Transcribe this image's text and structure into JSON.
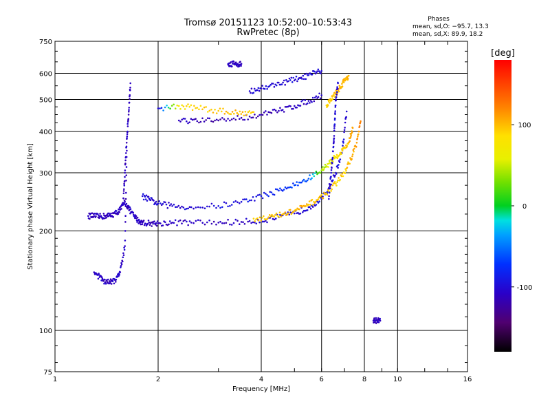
{
  "header": {
    "title": "Tromsø 20151123 10:52:00–10:53:43",
    "subtitle": "RwPretec (8p)"
  },
  "phase_stats": {
    "heading": "Phases",
    "line_o": "mean, sd,O: −95.7, 13.3",
    "line_x": "mean, sd,X:  89.9, 18.2"
  },
  "colorbar": {
    "label": "[deg]",
    "ticks": [
      100,
      0,
      -100
    ],
    "range": [
      -180,
      180
    ]
  },
  "chart_data": {
    "type": "scatter",
    "xlabel": "Frequency [MHz]",
    "ylabel": "Stationary phase Virtual Height [km]",
    "x_scale": "log",
    "y_scale": "log",
    "xlim": [
      1,
      16
    ],
    "ylim": [
      75,
      750
    ],
    "x_ticks": [
      1,
      2,
      4,
      6,
      8,
      10,
      16
    ],
    "y_ticks": [
      75,
      100,
      200,
      300,
      400,
      500,
      600,
      750
    ],
    "grid": true,
    "series": [
      {
        "x": [
          1.25,
          1.3,
          1.35,
          1.4,
          1.45,
          1.5,
          1.55,
          1.6,
          1.65,
          1.7,
          1.75,
          1.8,
          1.9,
          2.0,
          2.2,
          2.5,
          3.0,
          3.5,
          4.0,
          4.5,
          5.0,
          5.5,
          6.0,
          6.3,
          6.6,
          6.9,
          7.1
        ],
        "y": [
          222,
          222,
          221,
          222,
          223,
          226,
          232,
          245,
          232,
          222,
          215,
          212,
          211,
          211,
          212,
          212,
          212,
          213,
          215,
          220,
          226,
          236,
          250,
          270,
          300,
          350,
          460
        ],
        "phase": [
          -110,
          -110,
          -110,
          -110,
          -110,
          -110,
          -110,
          -110,
          -110,
          -105,
          -110,
          -110,
          -110,
          -110,
          -110,
          -108,
          -112,
          -110,
          -105,
          -100,
          -100,
          -100,
          -98,
          -100,
          -100,
          -100,
          -100
        ]
      },
      {
        "x": [
          1.8,
          1.9,
          2.0,
          2.2,
          2.5,
          3.0,
          3.5,
          4.0,
          4.5,
          5.0,
          5.5,
          6.0,
          6.3,
          6.6,
          6.9,
          7.2,
          7.4
        ],
        "y": [
          255,
          248,
          242,
          238,
          236,
          238,
          245,
          255,
          265,
          275,
          288,
          305,
          320,
          335,
          350,
          370,
          410
        ],
        "phase": [
          -100,
          -105,
          -100,
          -105,
          -100,
          -95,
          -95,
          -90,
          -80,
          -70,
          -60,
          40,
          60,
          80,
          90,
          100,
          110
        ]
      },
      {
        "x": [
          3.8,
          4.2,
          4.6,
          5.0,
          5.4,
          5.8,
          6.2,
          6.6,
          7.0,
          7.3,
          7.6,
          7.8
        ],
        "y": [
          218,
          220,
          224,
          230,
          238,
          248,
          260,
          278,
          300,
          330,
          370,
          430
        ],
        "phase": [
          90,
          95,
          100,
          105,
          100,
          95,
          90,
          90,
          95,
          100,
          110,
          120
        ]
      },
      {
        "x": [
          2.3,
          2.6,
          3.0,
          3.5,
          4.0,
          4.5,
          5.0,
          5.5,
          6.0
        ],
        "y": [
          432,
          430,
          432,
          440,
          450,
          462,
          478,
          495,
          515
        ],
        "phase": [
          -110,
          -115,
          -120,
          -118,
          -115,
          -112,
          -110,
          -108,
          -105
        ]
      },
      {
        "x": [
          3.7,
          4.0,
          4.4,
          4.8,
          5.2,
          5.6,
          6.0
        ],
        "y": [
          530,
          540,
          555,
          568,
          580,
          595,
          610
        ],
        "phase": [
          -100,
          -100,
          -100,
          -100,
          -100,
          -100,
          -100
        ]
      },
      {
        "x": [
          2.0,
          2.3,
          2.6,
          3.0,
          3.4,
          3.8
        ],
        "y": [
          470,
          478,
          472,
          462,
          455,
          458
        ],
        "phase": [
          -100,
          80,
          90,
          95,
          100,
          90
        ]
      },
      {
        "x": [
          6.2,
          6.4,
          6.6,
          6.8,
          7.0,
          7.2
        ],
        "y": [
          480,
          500,
          520,
          545,
          570,
          590
        ],
        "phase": [
          90,
          95,
          100,
          100,
          105,
          100
        ]
      },
      {
        "x": [
          1.3,
          1.35,
          1.4,
          1.45,
          1.5,
          1.55,
          1.6,
          1.62
        ],
        "y": [
          150,
          145,
          140,
          140,
          142,
          150,
          180,
          350
        ],
        "phase": [
          -110,
          -105,
          -110,
          -112,
          -108,
          -110,
          -110,
          -110
        ]
      },
      {
        "x": [
          1.58,
          1.6,
          1.62,
          1.64,
          1.66
        ],
        "y": [
          240,
          300,
          380,
          450,
          560
        ],
        "phase": [
          -110,
          -110,
          -110,
          -115,
          -110
        ]
      },
      {
        "x": [
          6.3,
          6.4,
          6.5,
          6.55,
          6.6,
          6.7
        ],
        "y": [
          250,
          300,
          360,
          420,
          500,
          560
        ],
        "phase": [
          -100,
          -100,
          -100,
          -100,
          -100,
          -100
        ]
      },
      {
        "x": [
          3.2,
          3.3,
          3.4,
          3.5
        ],
        "y": [
          640,
          642,
          640,
          641
        ],
        "phase": [
          -110,
          -112,
          -110,
          -111
        ]
      },
      {
        "x": [
          8.5,
          8.7,
          8.9
        ],
        "y": [
          107,
          107,
          107
        ],
        "phase": [
          -110,
          -110,
          -110
        ]
      }
    ]
  }
}
